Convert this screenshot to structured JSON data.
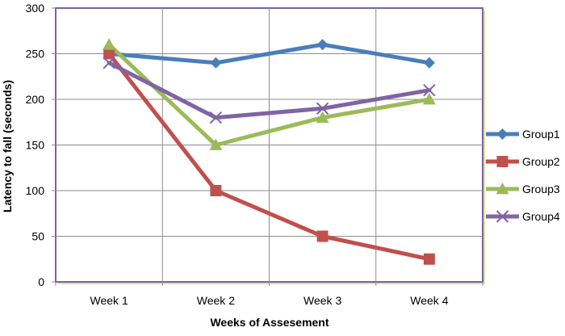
{
  "chart_data": {
    "type": "line",
    "title": "",
    "xlabel": "Weeks of Assesement",
    "ylabel": "Latency to fall (seconds)",
    "categories": [
      "Week 1",
      "Week 2",
      "Week 3",
      "Week 4"
    ],
    "ylim": [
      0,
      300
    ],
    "yticks": [
      "0",
      "50",
      "100",
      "150",
      "200",
      "250",
      "300"
    ],
    "grid": true,
    "legend_position": "right",
    "series": [
      {
        "name": "Group1",
        "values": [
          250,
          240,
          260,
          240
        ],
        "color": "#4a7ebb",
        "marker": "diamond"
      },
      {
        "name": "Group2",
        "values": [
          250,
          100,
          50,
          25
        ],
        "color": "#c0504d",
        "marker": "square"
      },
      {
        "name": "Group3",
        "values": [
          260,
          150,
          180,
          200
        ],
        "color": "#9bbb59",
        "marker": "triangle"
      },
      {
        "name": "Group4",
        "values": [
          240,
          180,
          190,
          210
        ],
        "color": "#8064a2",
        "marker": "x"
      }
    ],
    "colors": {
      "plot_area_border": "#7f5fa5",
      "plot_area_shadow": "#d8e49a",
      "grid": "#8c8c8c"
    }
  }
}
